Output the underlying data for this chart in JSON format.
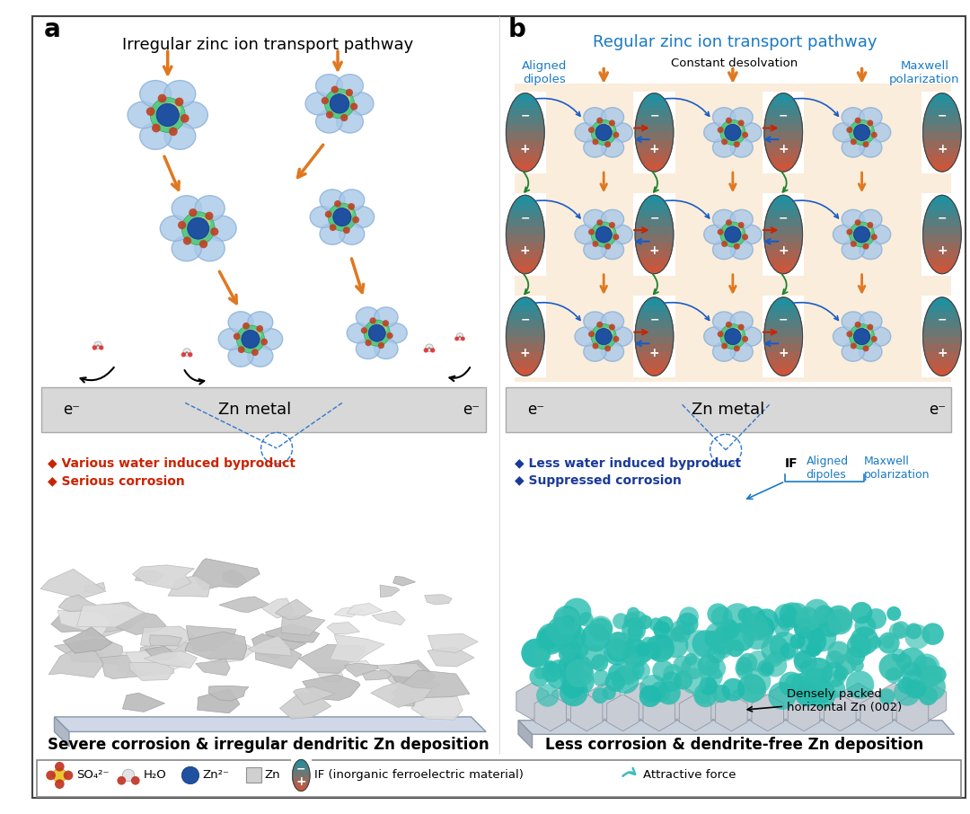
{
  "fig_width": 10.8,
  "fig_height": 9.06,
  "bg_color": "#ffffff",
  "border_color": "#333333",
  "panel_a_title": "Irregular zinc ion transport pathway",
  "panel_b_title": "Regular zinc ion transport pathway",
  "panel_a_label": "a",
  "panel_b_label": "b",
  "zn_metal_text": "Zn metal",
  "e_minus_left": "e⁻",
  "e_minus_right": "e⁻",
  "panel_b_top_labels": [
    "Aligned\ndipoles",
    "Constant desolvation",
    "Maxwell\npolarization"
  ],
  "panel_b_top_colors": [
    "#1a7ac4",
    "#000000",
    "#1a7ac4"
  ],
  "left_bottom_title": "Severe corrosion & irregular dendritic Zn deposition",
  "right_bottom_title": "Less corrosion & dendrite-free Zn deposition",
  "left_bullet1": "◆ Various water induced byproduct",
  "left_bullet2": "◆ Serious corrosion",
  "right_bullet1": "◆ Less water induced byproduct",
  "right_bullet2": "◆ Suppressed corrosion",
  "left_bullet_color": "#cc2200",
  "right_bullet_color": "#1a3a9a",
  "if_label": "IF",
  "aligned_dipoles_label": "Aligned\ndipoles",
  "maxwell_label": "Maxwell\npolarization",
  "densely_packed_label": "Densely packed\nhorizontal Zn (002)",
  "legend_items": [
    "SO₄²⁻",
    "H₂O",
    "Zn²⁻",
    "Zn",
    "IF (inorganic ferroelectric material)",
    "Attractive force"
  ],
  "orange_arrow_color": "#e07820",
  "teal_color": "#3dbdbd",
  "light_blue_color": "#a8c8e8",
  "dark_blue_color": "#2050a0",
  "peach_bg_color": "#f5d9b0",
  "grid_line_color": "#bbbbbb",
  "zn_metal_bg": "#d8d8d8"
}
